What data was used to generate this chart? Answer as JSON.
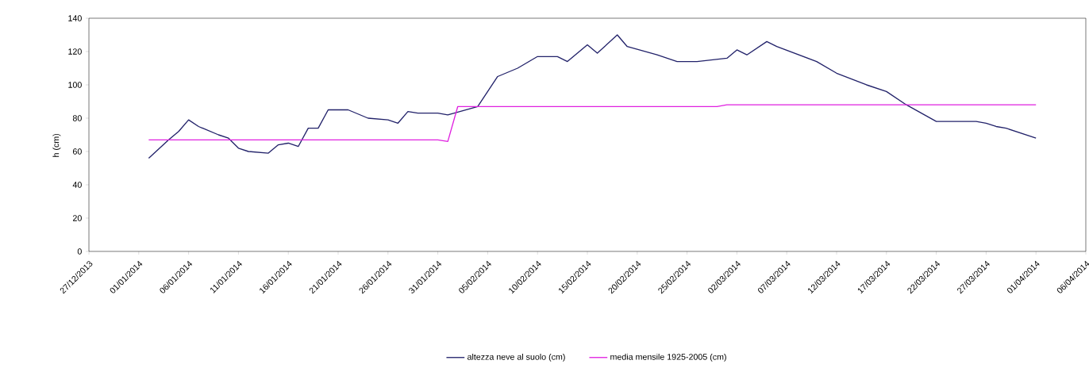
{
  "chart_data": {
    "type": "line",
    "ylabel": "h (cm)",
    "xlim": [
      "2013-12-27",
      "2014-04-06"
    ],
    "xticks": [
      {
        "value": "2013-12-27",
        "label": "27/12/2013"
      },
      {
        "value": "2014-01-01",
        "label": "01/01/2014"
      },
      {
        "value": "2014-01-06",
        "label": "06/01/2014"
      },
      {
        "value": "2014-01-11",
        "label": "11/01/2014"
      },
      {
        "value": "2014-01-16",
        "label": "16/01/2014"
      },
      {
        "value": "2014-01-21",
        "label": "21/01/2014"
      },
      {
        "value": "2014-01-26",
        "label": "26/01/2014"
      },
      {
        "value": "2014-01-31",
        "label": "31/01/2014"
      },
      {
        "value": "2014-02-05",
        "label": "05/02/2014"
      },
      {
        "value": "2014-02-10",
        "label": "10/02/2014"
      },
      {
        "value": "2014-02-15",
        "label": "15/02/2014"
      },
      {
        "value": "2014-02-20",
        "label": "20/02/2014"
      },
      {
        "value": "2014-02-25",
        "label": "25/02/2014"
      },
      {
        "value": "2014-03-02",
        "label": "02/03/2014"
      },
      {
        "value": "2014-03-07",
        "label": "07/03/2014"
      },
      {
        "value": "2014-03-12",
        "label": "12/03/2014"
      },
      {
        "value": "2014-03-17",
        "label": "17/03/2014"
      },
      {
        "value": "2014-03-22",
        "label": "22/03/2014"
      },
      {
        "value": "2014-03-27",
        "label": "27/03/2014"
      },
      {
        "value": "2014-04-01",
        "label": "01/04/2014"
      },
      {
        "value": "2014-04-06",
        "label": "06/04/2014"
      }
    ],
    "ylim": [
      0,
      140
    ],
    "yticks": [
      0,
      20,
      40,
      60,
      80,
      100,
      120,
      140
    ],
    "legend": "bottom",
    "series": [
      {
        "name": "altezza neve al suolo (cm)",
        "color": "#22226a",
        "x": [
          "2014-01-02",
          "2014-01-04",
          "2014-01-05",
          "2014-01-06",
          "2014-01-07",
          "2014-01-09",
          "2014-01-10",
          "2014-01-11",
          "2014-01-12",
          "2014-01-14",
          "2014-01-15",
          "2014-01-16",
          "2014-01-17",
          "2014-01-18",
          "2014-01-19",
          "2014-01-20",
          "2014-01-22",
          "2014-01-24",
          "2014-01-26",
          "2014-01-27",
          "2014-01-28",
          "2014-01-29",
          "2014-01-31",
          "2014-02-01",
          "2014-02-04",
          "2014-02-06",
          "2014-02-08",
          "2014-02-10",
          "2014-02-12",
          "2014-02-13",
          "2014-02-15",
          "2014-02-16",
          "2014-02-18",
          "2014-02-19",
          "2014-02-22",
          "2014-02-24",
          "2014-02-26",
          "2014-03-01",
          "2014-03-02",
          "2014-03-03",
          "2014-03-05",
          "2014-03-06",
          "2014-03-10",
          "2014-03-12",
          "2014-03-15",
          "2014-03-17",
          "2014-03-19",
          "2014-03-22",
          "2014-03-26",
          "2014-03-27",
          "2014-03-28",
          "2014-03-29",
          "2014-04-01"
        ],
        "values": [
          56,
          67,
          72,
          79,
          75,
          70,
          68,
          62,
          60,
          59,
          64,
          65,
          63,
          74,
          74,
          85,
          85,
          80,
          79,
          77,
          84,
          83,
          83,
          82,
          87,
          105,
          110,
          117,
          117,
          114,
          124,
          119,
          130,
          123,
          118,
          114,
          114,
          116,
          121,
          118,
          126,
          123,
          114,
          107,
          100,
          96,
          88,
          78,
          78,
          77,
          75,
          74,
          68
        ]
      },
      {
        "name": "media mensile 1925-2005 (cm)",
        "color": "#e020e0",
        "x": [
          "2014-01-02",
          "2014-01-31",
          "2014-02-01",
          "2014-02-02",
          "2014-02-28",
          "2014-03-01",
          "2014-04-01"
        ],
        "values": [
          67,
          67,
          66,
          87,
          87,
          88,
          88
        ]
      }
    ]
  }
}
